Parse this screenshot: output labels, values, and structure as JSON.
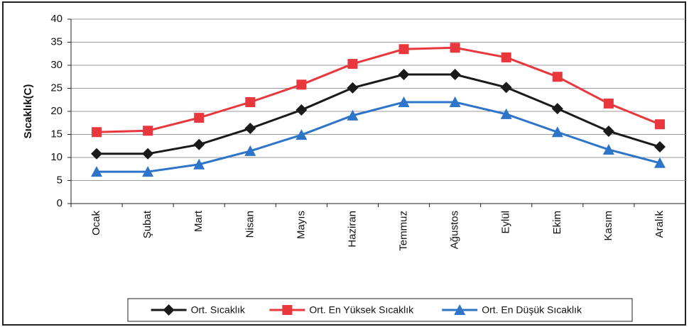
{
  "chart_data": {
    "type": "line",
    "y_label": "Sıcaklık(C)",
    "categories": [
      "Ocak",
      "Şubat",
      "Mart",
      "Nisan",
      "Mayıs",
      "Haziran",
      "Temmuz",
      "Ağustos",
      "Eylül",
      "Ekim",
      "Kasım",
      "Aralık"
    ],
    "series": [
      {
        "name": "Ort. Sıcaklık",
        "color": "#1a1a1a",
        "marker": "diamond",
        "values": [
          10.8,
          10.8,
          12.8,
          16.3,
          20.3,
          25.1,
          28,
          28,
          25.2,
          20.6,
          15.7,
          12.3
        ]
      },
      {
        "name": "Ort. En Yüksek Sıcaklık",
        "color": "#e8383d",
        "marker": "square",
        "values": [
          15.5,
          15.8,
          18.6,
          22,
          25.8,
          30.3,
          33.5,
          33.8,
          31.7,
          27.5,
          21.7,
          17.2
        ]
      },
      {
        "name": "Ort. En Düşük Sıcaklık",
        "color": "#2e74c9",
        "marker": "triangle",
        "values": [
          6.9,
          6.9,
          8.5,
          11.4,
          14.9,
          19.1,
          22,
          22,
          19.4,
          15.5,
          11.7,
          8.8
        ]
      }
    ],
    "ylim": [
      0,
      40
    ],
    "yticks": [
      0,
      5,
      10,
      15,
      20,
      25,
      30,
      35,
      40
    ],
    "grid": true,
    "legend": "bottom"
  }
}
